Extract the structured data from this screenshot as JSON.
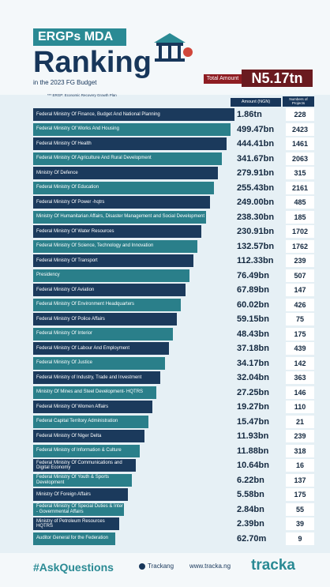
{
  "header": {
    "badge": "ERGPs MDA",
    "title": "Ranking",
    "subtitle": "in the 2023 FG Budget",
    "note": "*** ERGP: Economic Recovery Growth Plan",
    "total_label": "Total Amount",
    "total_value": "N5.17tn"
  },
  "table": {
    "columns": [
      "Amount (NGN)",
      "Numbers of Projects"
    ],
    "rows": [
      [
        "Federal Ministry Of Finance, Budget And National Planning",
        "1.86tn",
        "228"
      ],
      [
        "Federal Ministry Of Works And Housing",
        "499.47bn",
        "2423"
      ],
      [
        "Federal Ministry Of Health",
        "444.41bn",
        "1461"
      ],
      [
        "Federal Ministry Of Agriculture And Rural Development",
        "341.67bn",
        "2063"
      ],
      [
        "Ministry Of Defence",
        "279.91bn",
        "315"
      ],
      [
        "Federal Ministry  Of Education",
        "255.43bn",
        "2161"
      ],
      [
        "Federal Ministry Of Power -hqtrs",
        "249.00bn",
        "485"
      ],
      [
        "Ministry Of Humanitarian Affairs, Disaster Management and Social Development",
        "238.30bn",
        "185"
      ],
      [
        "Federal Ministry Of Water Resources",
        "230.91bn",
        "1702"
      ],
      [
        "Federal Ministry Of Science, Technology and Innovation",
        "132.57bn",
        "1762"
      ],
      [
        "Federal Ministry Of Transport",
        "112.33bn",
        "239"
      ],
      [
        "Presidency",
        "76.49bn",
        "507"
      ],
      [
        "Federal Ministry Of Aviation",
        "67.89bn",
        "147"
      ],
      [
        "Federal Ministry Of Environment Headquarters",
        "60.02bn",
        "426"
      ],
      [
        "Federal Ministry Of Police Affairs",
        "59.15bn",
        "75"
      ],
      [
        "Federal Ministry Of Interior",
        "48.43bn",
        "175"
      ],
      [
        "Federal Ministry Of Labour And Employment",
        "37.18bn",
        "439"
      ],
      [
        "Federal Ministry Of Justice",
        "34.17bn",
        "142"
      ],
      [
        "Federal Ministry of Industry, Trade and Investment",
        "32.04bn",
        "363"
      ],
      [
        "Ministry Of Mines and Steel Development- HQTRS",
        "27.25bn",
        "146"
      ],
      [
        "Federal Ministry Of Women Affairs",
        "19.27bn",
        "110"
      ],
      [
        "Federal Capital Territory Administration",
        "15.47bn",
        "21"
      ],
      [
        "Federal Ministry Of Niger Delta",
        "11.93bn",
        "239"
      ],
      [
        "Federal Ministry of Information & Culture",
        "11.88bn",
        "318"
      ],
      [
        "Federal Ministry Of Communications and Digital Economy",
        "10.64bn",
        "16"
      ],
      [
        "Federal Ministry Of Youth & Sports Development",
        "6.22bn",
        "137"
      ],
      [
        "Ministry Of Foreign Affairs",
        "5.58bn",
        "175"
      ],
      [
        "Federal Ministry Of Special Duties & Inter - Governmental Affairs",
        "2.84bn",
        "55"
      ],
      [
        "Ministry of Petroleum Resources HQTRS",
        "2.39bn",
        "39"
      ],
      [
        "Auditor General for the Federation",
        "62.70m",
        "9"
      ]
    ]
  },
  "footer": {
    "hashtag": "#AskQuestions",
    "social": "Trackang",
    "website": "www.tracka.ng",
    "logo": "tracka"
  }
}
